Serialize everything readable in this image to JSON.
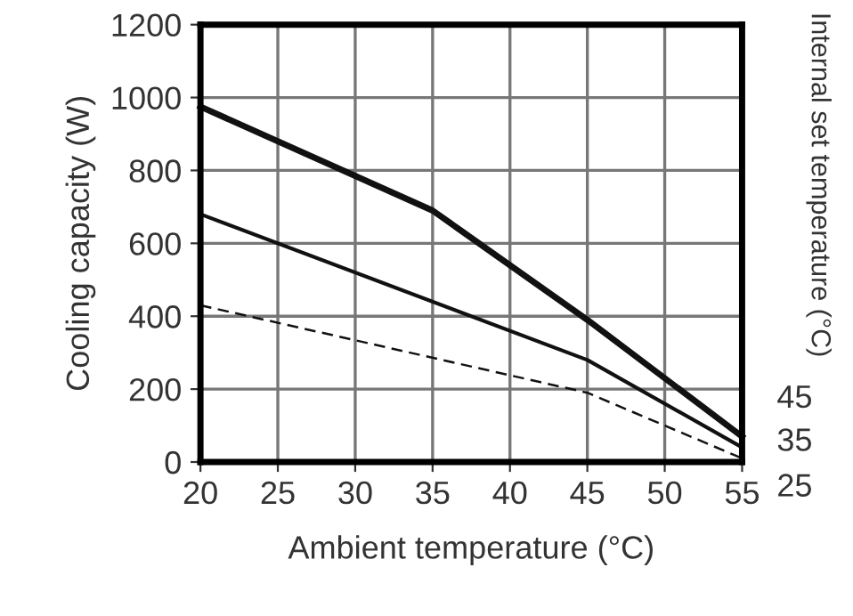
{
  "chart_data": {
    "type": "line",
    "xlabel": "Ambient temperature (°C)",
    "ylabel": "Cooling capacity (W)",
    "y2label": "Internal set temperature (°C)",
    "xlim": [
      20,
      55
    ],
    "xticks": [
      20,
      25,
      30,
      35,
      40,
      45,
      50,
      55
    ],
    "ylim": [
      0,
      1200
    ],
    "yticks": [
      0,
      200,
      400,
      600,
      800,
      1000,
      1200
    ],
    "grid": true,
    "marker": "none",
    "series": [
      {
        "name": "45",
        "color": "#111111",
        "line_style": "solid",
        "x": [
          20,
          35,
          45,
          55
        ],
        "values": [
          975,
          690,
          390,
          70
        ]
      },
      {
        "name": "35",
        "color": "#111111",
        "line_style": "solid",
        "x": [
          20,
          45,
          55
        ],
        "values": [
          680,
          280,
          40
        ]
      },
      {
        "name": "25",
        "color": "#111111",
        "line_style": "dashed",
        "x": [
          20,
          45,
          55
        ],
        "values": [
          430,
          190,
          10
        ]
      }
    ]
  }
}
